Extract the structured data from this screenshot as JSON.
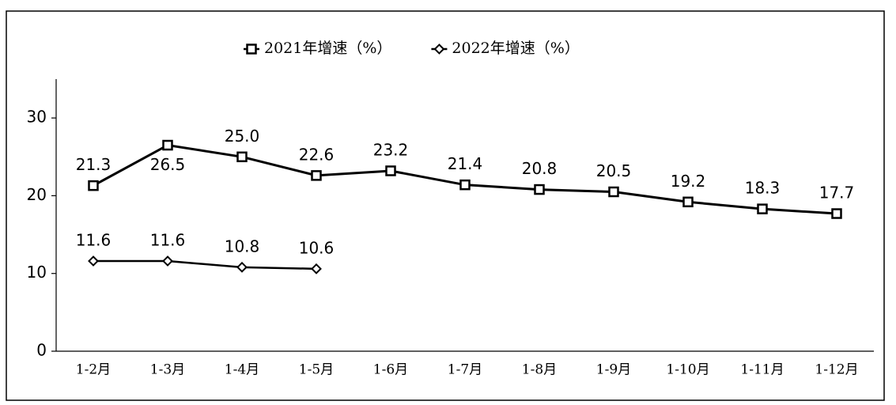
{
  "chart_data": {
    "type": "line",
    "categories": [
      "1-2月",
      "1-3月",
      "1-4月",
      "1-5月",
      "1-6月",
      "1-7月",
      "1-8月",
      "1-9月",
      "1-10月",
      "1-11月",
      "1-12月"
    ],
    "series": [
      {
        "name": "2021年增速（%）",
        "color": "#000000",
        "marker": "square",
        "values": [
          21.3,
          26.5,
          25.0,
          22.6,
          23.2,
          21.4,
          20.8,
          20.5,
          19.2,
          18.3,
          17.7
        ],
        "value_labels": [
          "21.3",
          "26.5",
          "25.0",
          "22.6",
          "23.2",
          "21.4",
          "20.8",
          "20.5",
          "19.2",
          "18.3",
          "17.7"
        ]
      },
      {
        "name": "2022年增速（%）",
        "color": "#000000",
        "marker": "diamond",
        "values": [
          11.6,
          11.6,
          10.8,
          10.6,
          null,
          null,
          null,
          null,
          null,
          null,
          null
        ],
        "value_labels": [
          "11.6",
          "11.6",
          "10.8",
          "10.6",
          null,
          null,
          null,
          null,
          null,
          null,
          null
        ]
      }
    ],
    "ylim": [
      0,
      35
    ],
    "yticks": [
      0,
      10,
      20,
      30
    ],
    "legend": "top"
  }
}
